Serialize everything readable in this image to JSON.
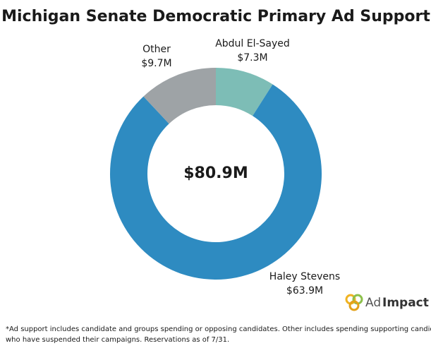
{
  "chart_data": {
    "type": "donut",
    "title": "Michigan Senate Democratic Primary Ad Support",
    "categories": [
      "Abdul El-Sayed",
      "Haley Stevens",
      "Other"
    ],
    "values": [
      7.3,
      63.9,
      9.7
    ],
    "value_labels": [
      "$7.3M",
      "$63.9M",
      "$9.7M"
    ],
    "colors": [
      "#7dbdb6",
      "#2e8bc1",
      "#9ea3a6"
    ],
    "center_label": "$80.9M",
    "footnote": [
      "*Ad support includes candidate and groups spending or opposing candidates. Other includes spending supporting candidates",
      "who have suspended their campaigns. Reservations as of 7/31."
    ],
    "logo": {
      "prefix": "Ad",
      "name": "Impact"
    }
  }
}
